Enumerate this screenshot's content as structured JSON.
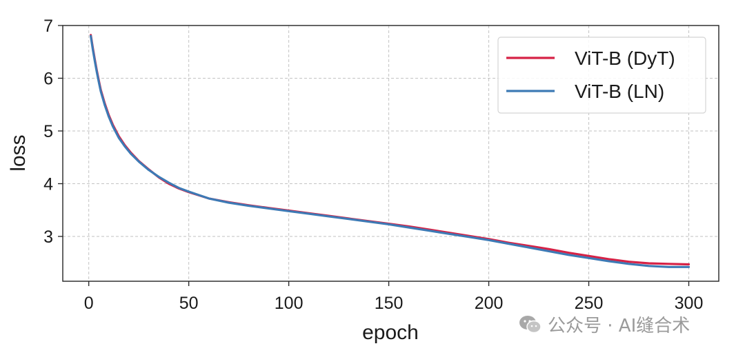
{
  "chart_data": {
    "type": "line",
    "xlabel": "epoch",
    "ylabel": "loss",
    "xlim": [
      -13,
      315
    ],
    "ylim": [
      2.15,
      7.0
    ],
    "xticks": [
      0,
      50,
      100,
      150,
      200,
      250,
      300
    ],
    "yticks": [
      3,
      4,
      5,
      6,
      7
    ],
    "grid": true,
    "legend_position": "top-right",
    "series": [
      {
        "name": "ViT-B (DyT)",
        "color": "#d62246",
        "x": [
          1,
          2,
          3,
          4,
          5,
          6,
          8,
          10,
          12,
          15,
          18,
          21,
          25,
          30,
          35,
          40,
          45,
          50,
          60,
          70,
          80,
          90,
          100,
          110,
          120,
          130,
          140,
          150,
          160,
          170,
          180,
          190,
          200,
          210,
          220,
          230,
          240,
          250,
          260,
          270,
          280,
          290,
          300
        ],
        "y": [
          6.82,
          6.58,
          6.36,
          6.15,
          5.96,
          5.78,
          5.52,
          5.3,
          5.12,
          4.9,
          4.73,
          4.59,
          4.43,
          4.27,
          4.12,
          4.0,
          3.91,
          3.84,
          3.72,
          3.65,
          3.59,
          3.54,
          3.49,
          3.44,
          3.39,
          3.34,
          3.29,
          3.24,
          3.19,
          3.13,
          3.07,
          3.01,
          2.95,
          2.88,
          2.82,
          2.76,
          2.69,
          2.63,
          2.57,
          2.52,
          2.49,
          2.48,
          2.47
        ]
      },
      {
        "name": "ViT-B (LN)",
        "color": "#3d7ab5",
        "x": [
          1,
          2,
          3,
          4,
          5,
          6,
          8,
          10,
          12,
          15,
          18,
          21,
          25,
          30,
          35,
          40,
          45,
          50,
          60,
          70,
          80,
          90,
          100,
          110,
          120,
          130,
          140,
          150,
          160,
          170,
          180,
          190,
          200,
          210,
          220,
          230,
          240,
          250,
          260,
          270,
          280,
          290,
          300
        ],
        "y": [
          6.8,
          6.55,
          6.33,
          6.12,
          5.93,
          5.75,
          5.49,
          5.27,
          5.09,
          4.87,
          4.71,
          4.57,
          4.42,
          4.26,
          4.13,
          4.02,
          3.92,
          3.85,
          3.72,
          3.64,
          3.58,
          3.53,
          3.48,
          3.43,
          3.38,
          3.33,
          3.28,
          3.23,
          3.17,
          3.11,
          3.05,
          2.99,
          2.93,
          2.86,
          2.79,
          2.72,
          2.65,
          2.59,
          2.53,
          2.48,
          2.44,
          2.42,
          2.42
        ]
      }
    ]
  },
  "watermark": {
    "text": "公众号 · AI缝合术",
    "icon": "wechat-icon"
  }
}
